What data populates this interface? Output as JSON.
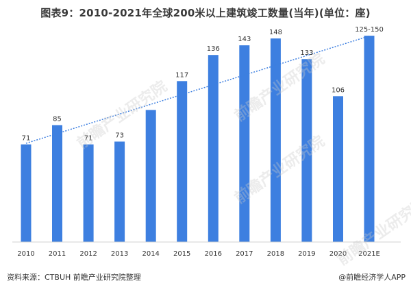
{
  "header": {
    "title": "图表9：2010-2021年全球200米以上建筑竣工数量(当年)(单位：座)"
  },
  "footer": {
    "source": "资料来源：CTBUH 前瞻产业研究院整理",
    "brand": "@前瞻经济学人APP"
  },
  "watermark_text": "前瞻产业研究院",
  "chart_data": {
    "type": "bar",
    "categories": [
      "2010",
      "2011",
      "2012",
      "2013",
      "2014",
      "2015",
      "2016",
      "2017",
      "2018",
      "2019",
      "2020",
      "2021E"
    ],
    "values": [
      71,
      85,
      71,
      73,
      96,
      117,
      136,
      143,
      148,
      133,
      106,
      150
    ],
    "data_labels": [
      "71",
      "85",
      "71",
      "73",
      "",
      "117",
      "136",
      "143",
      "148",
      "133",
      "106",
      "125-150"
    ],
    "bar_color": "#3d7fe0",
    "trendline": {
      "style": "dotted",
      "color": "#3d7fe0"
    },
    "title": "",
    "xlabel": "",
    "ylabel": "",
    "ylim": [
      0,
      160
    ],
    "grid": false,
    "legend": "none"
  }
}
